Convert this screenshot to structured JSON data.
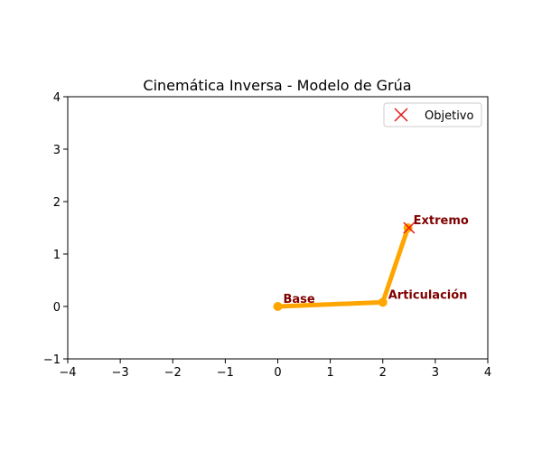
{
  "chart_data": {
    "type": "line",
    "title": "Cinemática Inversa - Modelo de Grúa",
    "xlabel": "",
    "ylabel": "",
    "xlim": [
      -4,
      4
    ],
    "ylim": [
      -1,
      4
    ],
    "x_ticks": [
      -4,
      -3,
      -2,
      -1,
      0,
      1,
      2,
      3,
      4
    ],
    "y_ticks": [
      -1,
      0,
      1,
      2,
      3,
      4
    ],
    "x_tick_labels": [
      "−4",
      "−3",
      "−2",
      "−1",
      "0",
      "1",
      "2",
      "3",
      "4"
    ],
    "y_tick_labels": [
      "−1",
      "0",
      "1",
      "2",
      "3",
      "4"
    ],
    "grid": false,
    "arm": {
      "color": "#ffa500",
      "points": [
        {
          "x": 0,
          "y": 0
        },
        {
          "x": 2,
          "y": 0.08
        },
        {
          "x": 2.48,
          "y": 1.5
        }
      ]
    },
    "target": {
      "name": "Objetivo",
      "x": 2.5,
      "y": 1.5,
      "marker": "x",
      "color": "#e41a1c"
    },
    "annotations": [
      {
        "text": "Base",
        "x": 0,
        "y": 0,
        "color": "#800000"
      },
      {
        "text": "Articulación",
        "x": 2,
        "y": 0.08,
        "color": "#800000"
      },
      {
        "text": "Extremo",
        "x": 2.48,
        "y": 1.5,
        "color": "#800000"
      }
    ],
    "legend": {
      "position": "top-right",
      "entries": [
        "Objetivo"
      ]
    }
  }
}
